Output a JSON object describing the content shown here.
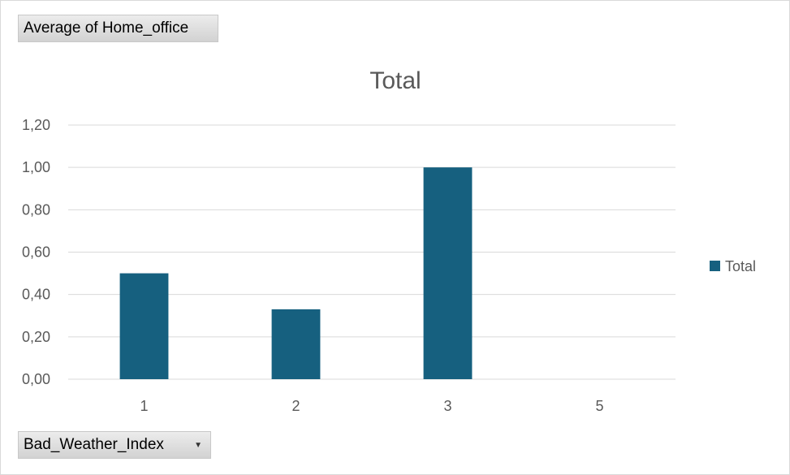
{
  "value_field": {
    "label": "Average of Home_office"
  },
  "axis_field": {
    "label": "Bad_Weather_Index",
    "dropdown_icon": "chevron-down-icon"
  },
  "colors": {
    "bar": "#16607f",
    "grid": "#d9d9d9",
    "text": "#595959"
  },
  "chart_data": {
    "type": "bar",
    "title": "Total",
    "xlabel": "",
    "ylabel": "",
    "categories": [
      "1",
      "2",
      "3",
      "5"
    ],
    "series": [
      {
        "name": "Total",
        "values": [
          0.5,
          0.33,
          1.0,
          0
        ]
      }
    ],
    "ylim": [
      0,
      1.2
    ],
    "yticks": [
      "0,00",
      "0,20",
      "0,40",
      "0,60",
      "0,80",
      "1,00",
      "1,20"
    ],
    "grid": true,
    "legend_position": "right"
  }
}
